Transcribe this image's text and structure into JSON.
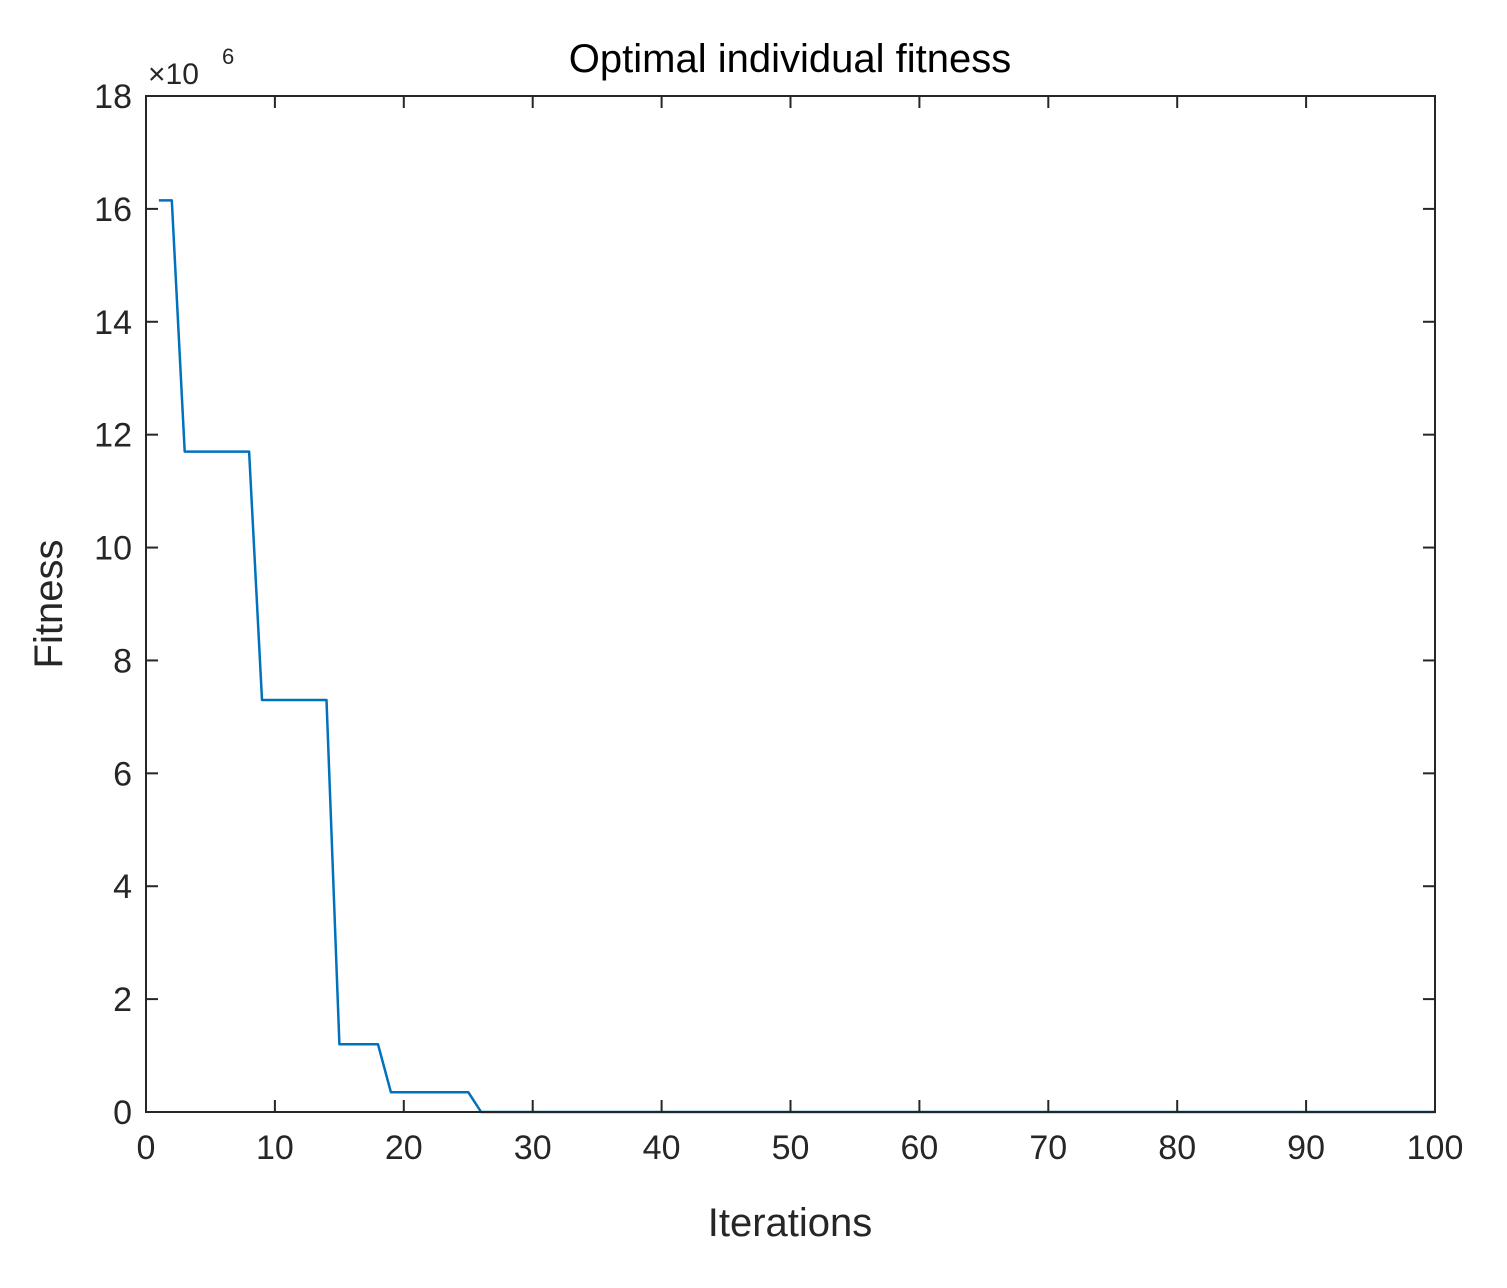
{
  "chart_data": {
    "type": "line",
    "title": "Optimal individual fitness",
    "xlabel": "Iterations",
    "ylabel": "Fitness",
    "exponent_base": "×10",
    "exponent_power": "6",
    "xlim": [
      0,
      100
    ],
    "ylim": [
      0,
      18
    ],
    "xticks": [
      0,
      10,
      20,
      30,
      40,
      50,
      60,
      70,
      80,
      90,
      100
    ],
    "yticks": [
      0,
      2,
      4,
      6,
      8,
      10,
      12,
      14,
      16,
      18
    ],
    "grid": false,
    "series": [
      {
        "color": "#0072BD",
        "x": [
          1,
          2,
          3,
          4,
          5,
          6,
          7,
          8,
          9,
          10,
          11,
          12,
          13,
          14,
          15,
          16,
          17,
          18,
          19,
          20,
          21,
          22,
          23,
          24,
          25,
          26,
          27,
          28,
          29,
          30,
          35,
          40,
          45,
          50,
          55,
          60,
          65,
          70,
          75,
          80,
          85,
          90,
          95,
          100
        ],
        "y": [
          16.15,
          16.15,
          11.7,
          11.7,
          11.7,
          11.7,
          11.7,
          11.7,
          7.3,
          7.3,
          7.3,
          7.3,
          7.3,
          7.3,
          1.2,
          1.2,
          1.2,
          1.2,
          0.35,
          0.35,
          0.35,
          0.35,
          0.35,
          0.35,
          0.35,
          0.0,
          0.0,
          0.0,
          0.0,
          0.0,
          0.0,
          0.0,
          0.0,
          0.0,
          0.0,
          0.0,
          0.0,
          0.0,
          0.0,
          0.0,
          0.0,
          0.0,
          0.0,
          0.0
        ]
      }
    ]
  }
}
